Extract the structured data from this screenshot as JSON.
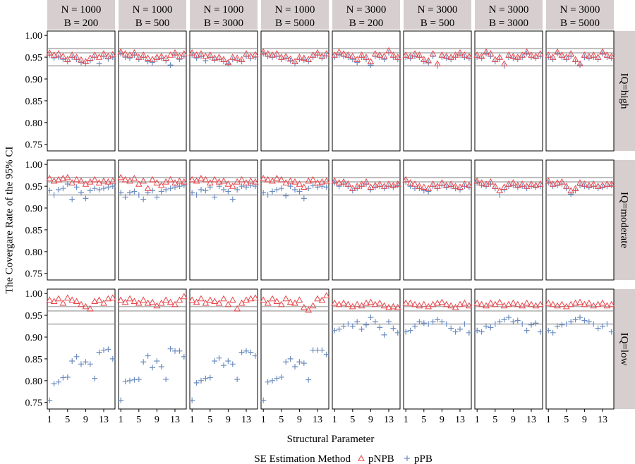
{
  "chart_data": {
    "type": "scatter",
    "title": "",
    "xlabel": "Structural Parameter",
    "ylabel": "The Covergare Rate of the 95% CI",
    "x": [
      1,
      2,
      3,
      4,
      5,
      6,
      7,
      8,
      9,
      10,
      11,
      12,
      13,
      14,
      15
    ],
    "x_ticks": [
      1,
      5,
      9,
      13
    ],
    "x_tick_labels": [
      "1",
      "5",
      "9",
      "13"
    ],
    "xlim": [
      0.5,
      15.5
    ],
    "ylim": [
      0.735,
      1.01
    ],
    "y_ticks": [
      0.75,
      0.8,
      0.85,
      0.9,
      0.95,
      1.0
    ],
    "y_tick_labels": [
      "0.75",
      "0.80",
      "0.85",
      "0.90",
      "0.95",
      "1.00"
    ],
    "reference_lines": [
      0.93,
      0.96,
      0.97
    ],
    "legend": {
      "title": "SE Estimation Method",
      "placement": "bottom",
      "entries": [
        {
          "name": "pNPB",
          "marker": "triangle",
          "color": "#e8454a"
        },
        {
          "name": "pPB",
          "marker": "plus",
          "color": "#6d8dbf"
        }
      ]
    },
    "columns": [
      {
        "n": "N = 1000",
        "b": "B = 200"
      },
      {
        "n": "N = 1000",
        "b": "B = 500"
      },
      {
        "n": "N = 1000",
        "b": "B = 3000"
      },
      {
        "n": "N = 1000",
        "b": "B = 5000"
      },
      {
        "n": "N = 3000",
        "b": "B = 200"
      },
      {
        "n": "N = 3000",
        "b": "B = 500"
      },
      {
        "n": "N = 3000",
        "b": "B = 3000"
      },
      {
        "n": "N = 3000",
        "b": "B = 5000"
      }
    ],
    "rows": [
      "IQ=high",
      "IQ=moderate",
      "IQ=low"
    ],
    "panels": [
      [
        {
          "pNPB": [
            0.96,
            0.955,
            0.958,
            0.952,
            0.945,
            0.955,
            0.95,
            0.944,
            0.94,
            0.948,
            0.955,
            0.95,
            0.958,
            0.952,
            0.956
          ],
          "pPB": [
            0.955,
            0.948,
            0.95,
            0.945,
            0.94,
            0.95,
            0.945,
            0.938,
            0.935,
            0.942,
            0.95,
            0.935,
            0.952,
            0.946,
            0.95
          ]
        },
        {
          "pNPB": [
            0.962,
            0.958,
            0.955,
            0.96,
            0.95,
            0.955,
            0.948,
            0.945,
            0.95,
            0.952,
            0.948,
            0.955,
            0.96,
            0.952,
            0.958
          ],
          "pPB": [
            0.958,
            0.95,
            0.948,
            0.955,
            0.945,
            0.95,
            0.94,
            0.938,
            0.945,
            0.948,
            0.942,
            0.932,
            0.955,
            0.945,
            0.952
          ]
        },
        {
          "pNPB": [
            0.96,
            0.955,
            0.958,
            0.952,
            0.955,
            0.948,
            0.95,
            0.945,
            0.938,
            0.95,
            0.948,
            0.945,
            0.958,
            0.952,
            0.956
          ],
          "pPB": [
            0.955,
            0.948,
            0.952,
            0.942,
            0.95,
            0.944,
            0.945,
            0.94,
            0.935,
            0.945,
            0.943,
            0.94,
            0.952,
            0.947,
            0.95
          ]
        },
        {
          "pNPB": [
            0.962,
            0.958,
            0.955,
            0.958,
            0.95,
            0.952,
            0.946,
            0.94,
            0.95,
            0.948,
            0.945,
            0.955,
            0.96,
            0.952,
            0.958
          ],
          "pPB": [
            0.958,
            0.952,
            0.95,
            0.952,
            0.945,
            0.948,
            0.942,
            0.935,
            0.945,
            0.944,
            0.94,
            0.95,
            0.955,
            0.948,
            0.953
          ]
        },
        {
          "pNPB": [
            0.955,
            0.962,
            0.958,
            0.955,
            0.952,
            0.945,
            0.955,
            0.95,
            0.94,
            0.958,
            0.955,
            0.952,
            0.965,
            0.955,
            0.95
          ],
          "pPB": [
            0.95,
            0.955,
            0.952,
            0.95,
            0.945,
            0.938,
            0.95,
            0.945,
            0.932,
            0.952,
            0.95,
            0.945,
            0.96,
            0.95,
            0.945
          ]
        },
        {
          "pNPB": [
            0.955,
            0.952,
            0.958,
            0.955,
            0.945,
            0.942,
            0.958,
            0.935,
            0.955,
            0.952,
            0.95,
            0.955,
            0.96,
            0.955,
            0.952
          ],
          "pPB": [
            0.95,
            0.948,
            0.952,
            0.95,
            0.94,
            0.938,
            0.952,
            0.93,
            0.95,
            0.948,
            0.945,
            0.95,
            0.955,
            0.95,
            0.948
          ]
        },
        {
          "pNPB": [
            0.955,
            0.952,
            0.962,
            0.958,
            0.945,
            0.95,
            0.935,
            0.955,
            0.952,
            0.95,
            0.955,
            0.962,
            0.955,
            0.952,
            0.958
          ],
          "pPB": [
            0.95,
            0.948,
            0.958,
            0.952,
            0.94,
            0.945,
            0.93,
            0.95,
            0.948,
            0.945,
            0.95,
            0.958,
            0.95,
            0.948,
            0.952
          ]
        },
        {
          "pNPB": [
            0.955,
            0.95,
            0.962,
            0.955,
            0.95,
            0.958,
            0.945,
            0.935,
            0.955,
            0.952,
            0.955,
            0.95,
            0.962,
            0.955,
            0.952
          ],
          "pPB": [
            0.95,
            0.945,
            0.958,
            0.95,
            0.945,
            0.952,
            0.94,
            0.932,
            0.95,
            0.948,
            0.95,
            0.945,
            0.958,
            0.95,
            0.948
          ]
        }
      ],
      [
        {
          "pNPB": [
            0.968,
            0.962,
            0.965,
            0.968,
            0.97,
            0.958,
            0.965,
            0.962,
            0.955,
            0.96,
            0.965,
            0.958,
            0.962,
            0.96,
            0.962
          ],
          "pPB": [
            0.94,
            0.93,
            0.942,
            0.945,
            0.955,
            0.92,
            0.948,
            0.935,
            0.922,
            0.94,
            0.945,
            0.942,
            0.945,
            0.948,
            0.95
          ]
        },
        {
          "pNPB": [
            0.97,
            0.965,
            0.962,
            0.968,
            0.955,
            0.962,
            0.945,
            0.965,
            0.958,
            0.952,
            0.96,
            0.965,
            0.958,
            0.962,
            0.96
          ],
          "pPB": [
            0.935,
            0.925,
            0.935,
            0.938,
            0.93,
            0.92,
            0.935,
            0.94,
            0.925,
            0.938,
            0.942,
            0.945,
            0.948,
            0.95,
            0.952
          ]
        },
        {
          "pNPB": [
            0.965,
            0.962,
            0.968,
            0.965,
            0.958,
            0.965,
            0.96,
            0.962,
            0.955,
            0.95,
            0.96,
            0.965,
            0.958,
            0.962,
            0.96
          ],
          "pPB": [
            0.935,
            0.93,
            0.942,
            0.94,
            0.948,
            0.925,
            0.95,
            0.942,
            0.938,
            0.92,
            0.942,
            0.95,
            0.948,
            0.952,
            0.95
          ]
        },
        {
          "pNPB": [
            0.968,
            0.965,
            0.962,
            0.968,
            0.965,
            0.958,
            0.962,
            0.96,
            0.955,
            0.948,
            0.962,
            0.965,
            0.958,
            0.96,
            0.962
          ],
          "pPB": [
            0.935,
            0.93,
            0.938,
            0.942,
            0.945,
            0.928,
            0.95,
            0.942,
            0.938,
            0.922,
            0.945,
            0.952,
            0.948,
            0.95,
            0.948
          ]
        },
        {
          "pNPB": [
            0.962,
            0.958,
            0.96,
            0.955,
            0.945,
            0.95,
            0.955,
            0.96,
            0.948,
            0.952,
            0.955,
            0.95,
            0.955,
            0.952,
            0.955
          ],
          "pPB": [
            0.958,
            0.95,
            0.955,
            0.95,
            0.94,
            0.945,
            0.95,
            0.955,
            0.942,
            0.948,
            0.95,
            0.945,
            0.95,
            0.948,
            0.952
          ]
        },
        {
          "pNPB": [
            0.965,
            0.958,
            0.955,
            0.95,
            0.948,
            0.945,
            0.955,
            0.95,
            0.958,
            0.952,
            0.955,
            0.95,
            0.948,
            0.955,
            0.952
          ],
          "pPB": [
            0.96,
            0.95,
            0.945,
            0.945,
            0.94,
            0.938,
            0.95,
            0.945,
            0.952,
            0.948,
            0.95,
            0.945,
            0.942,
            0.95,
            0.948
          ]
        },
        {
          "pNPB": [
            0.962,
            0.958,
            0.955,
            0.96,
            0.95,
            0.94,
            0.948,
            0.955,
            0.958,
            0.952,
            0.955,
            0.95,
            0.955,
            0.952,
            0.955
          ],
          "pPB": [
            0.958,
            0.952,
            0.95,
            0.955,
            0.945,
            0.93,
            0.942,
            0.95,
            0.952,
            0.948,
            0.95,
            0.945,
            0.95,
            0.948,
            0.95
          ]
        },
        {
          "pNPB": [
            0.962,
            0.955,
            0.958,
            0.96,
            0.95,
            0.94,
            0.945,
            0.958,
            0.955,
            0.952,
            0.955,
            0.95,
            0.952,
            0.955,
            0.955
          ],
          "pPB": [
            0.958,
            0.95,
            0.952,
            0.955,
            0.945,
            0.932,
            0.94,
            0.952,
            0.95,
            0.948,
            0.95,
            0.945,
            0.948,
            0.95,
            0.952
          ]
        }
      ],
      [
        {
          "pNPB": [
            0.985,
            0.982,
            0.988,
            0.978,
            0.99,
            0.985,
            0.982,
            0.975,
            0.97,
            0.965,
            0.982,
            0.985,
            0.978,
            0.988,
            0.99
          ],
          "pPB": [
            0.755,
            0.793,
            0.797,
            0.807,
            0.808,
            0.845,
            0.855,
            0.838,
            0.843,
            0.838,
            0.805,
            0.865,
            0.87,
            0.872,
            0.85
          ]
        },
        {
          "pNPB": [
            0.985,
            0.98,
            0.988,
            0.982,
            0.978,
            0.985,
            0.978,
            0.98,
            0.972,
            0.978,
            0.985,
            0.98,
            0.975,
            0.985,
            0.993
          ],
          "pPB": [
            0.755,
            0.798,
            0.8,
            0.802,
            0.803,
            0.843,
            0.857,
            0.83,
            0.845,
            0.832,
            0.803,
            0.873,
            0.868,
            0.868,
            0.855
          ]
        },
        {
          "pNPB": [
            0.985,
            0.98,
            0.988,
            0.978,
            0.985,
            0.982,
            0.978,
            0.988,
            0.975,
            0.985,
            0.965,
            0.978,
            0.985,
            0.988,
            0.99
          ],
          "pPB": [
            0.755,
            0.795,
            0.8,
            0.805,
            0.807,
            0.845,
            0.852,
            0.835,
            0.845,
            0.838,
            0.803,
            0.865,
            0.868,
            0.865,
            0.857
          ]
        },
        {
          "pNPB": [
            0.985,
            0.978,
            0.988,
            0.982,
            0.975,
            0.988,
            0.98,
            0.978,
            0.985,
            0.968,
            0.962,
            0.972,
            0.988,
            0.985,
            0.995
          ],
          "pPB": [
            0.755,
            0.797,
            0.8,
            0.805,
            0.808,
            0.843,
            0.85,
            0.832,
            0.843,
            0.84,
            0.802,
            0.87,
            0.87,
            0.87,
            0.86
          ]
        },
        {
          "pNPB": [
            0.978,
            0.975,
            0.978,
            0.975,
            0.97,
            0.975,
            0.972,
            0.978,
            0.98,
            0.975,
            0.978,
            0.972,
            0.968,
            0.97,
            0.968
          ],
          "pPB": [
            0.915,
            0.918,
            0.925,
            0.93,
            0.925,
            0.935,
            0.918,
            0.928,
            0.945,
            0.935,
            0.922,
            0.905,
            0.935,
            0.92,
            0.91
          ]
        },
        {
          "pNPB": [
            0.978,
            0.978,
            0.975,
            0.972,
            0.975,
            0.97,
            0.975,
            0.978,
            0.98,
            0.975,
            0.972,
            0.968,
            0.975,
            0.978,
            0.972
          ],
          "pPB": [
            0.912,
            0.915,
            0.925,
            0.935,
            0.932,
            0.93,
            0.935,
            0.94,
            0.935,
            0.93,
            0.92,
            0.912,
            0.918,
            0.93,
            0.91
          ]
        },
        {
          "pNPB": [
            0.978,
            0.975,
            0.972,
            0.978,
            0.975,
            0.98,
            0.972,
            0.975,
            0.978,
            0.975,
            0.972,
            0.978,
            0.975,
            0.972,
            0.975
          ],
          "pPB": [
            0.915,
            0.912,
            0.925,
            0.922,
            0.93,
            0.935,
            0.94,
            0.945,
            0.935,
            0.938,
            0.93,
            0.915,
            0.928,
            0.932,
            0.912
          ]
        },
        {
          "pNPB": [
            0.978,
            0.975,
            0.972,
            0.975,
            0.97,
            0.975,
            0.978,
            0.98,
            0.975,
            0.978,
            0.972,
            0.975,
            0.978,
            0.972,
            0.975
          ],
          "pPB": [
            0.915,
            0.91,
            0.925,
            0.928,
            0.93,
            0.935,
            0.94,
            0.945,
            0.938,
            0.935,
            0.93,
            0.92,
            0.925,
            0.93,
            0.912
          ]
        }
      ]
    ]
  }
}
